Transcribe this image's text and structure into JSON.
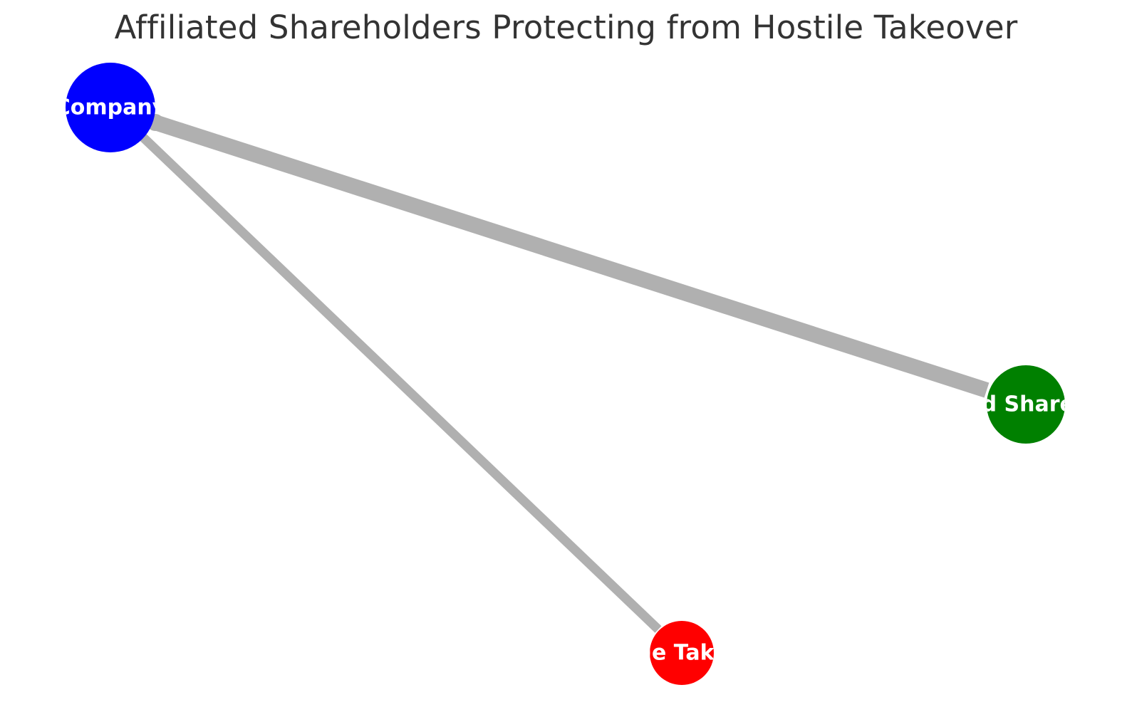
{
  "title": "Affiliated Shareholders Protecting from Hostile Takeover",
  "nodes": [
    {
      "id": "company",
      "label": "Company",
      "color": "#0000ff"
    },
    {
      "id": "shareholders",
      "label": "Affiliated Shareholders",
      "color": "#008000"
    },
    {
      "id": "takeover",
      "label": "Hostile Takeover",
      "color": "#ff0000"
    }
  ],
  "edges": [
    {
      "id": "company-shareholders",
      "source": "company",
      "target": "shareholders",
      "color": "#b0b0b0"
    },
    {
      "id": "company-takeover",
      "source": "company",
      "target": "takeover",
      "color": "#b0b0b0"
    }
  ]
}
